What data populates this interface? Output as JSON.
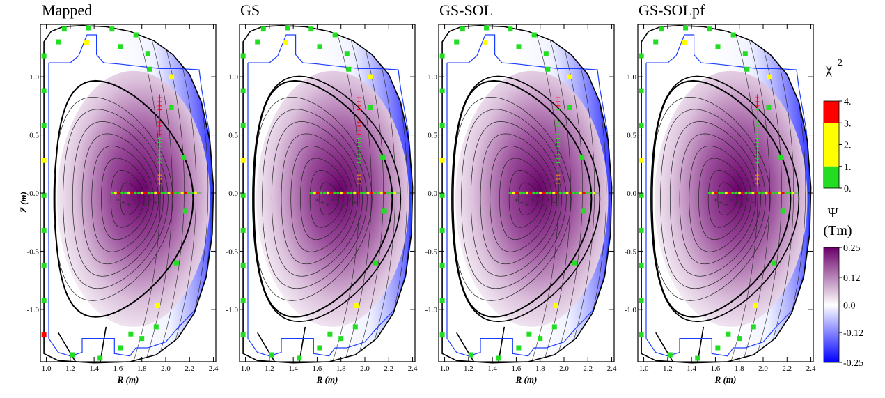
{
  "chart_data": {
    "type": "heatmap",
    "panels": [
      {
        "title": "Mapped",
        "variant": "mapped"
      },
      {
        "title": "GS",
        "variant": "gs"
      },
      {
        "title": "GS-SOL",
        "variant": "sol"
      },
      {
        "title": "GS-SOLpf",
        "variant": "solpf"
      }
    ],
    "xlabel": "R (m)",
    "ylabel": "Z (m)",
    "xlim": [
      0.95,
      2.42
    ],
    "ylim": [
      -1.45,
      1.45
    ],
    "x_ticks": [
      "1.0",
      "1.2",
      "1.4",
      "1.6",
      "1.8",
      "2.0",
      "2.2",
      "2.4"
    ],
    "x_tick_values": [
      1.0,
      1.2,
      1.4,
      1.6,
      1.8,
      2.0,
      2.2,
      2.4
    ],
    "y_ticks": [
      "1.0",
      "0.5",
      "0.0",
      "-0.5",
      "-1.0"
    ],
    "y_tick_values": [
      1.0,
      0.5,
      0.0,
      -0.5,
      -1.0
    ],
    "chi2_colorbar": {
      "title": "χ",
      "title_sup": "2",
      "labels": [
        "4.",
        "3.",
        "2.",
        "1.",
        "0."
      ],
      "values": [
        4,
        3,
        2,
        1,
        0
      ],
      "colors": {
        "low": "#22dd22",
        "mid": "#ffff00",
        "high": "#ff0000"
      }
    },
    "psi_colorbar": {
      "title": "Ψ",
      "unit": "(Tm)",
      "labels": [
        "0.25",
        "0.12",
        "0.0",
        "-0.12",
        "-0.25"
      ],
      "values": [
        0.25,
        0.12,
        0.0,
        -0.12,
        -0.25
      ],
      "colors": {
        "max": "#6a006a",
        "zero": "#ffffff",
        "min": "#0000ff"
      }
    },
    "magnetic_axis": {
      "R": 1.7,
      "Z": -0.05
    },
    "diagnostics": {
      "vertical_chord_R": 1.95,
      "vertical_chord_Z": [
        0.0,
        0.85
      ],
      "midplane_chord_Z": 0.0,
      "midplane_chord_R": [
        1.55,
        2.3
      ]
    }
  }
}
